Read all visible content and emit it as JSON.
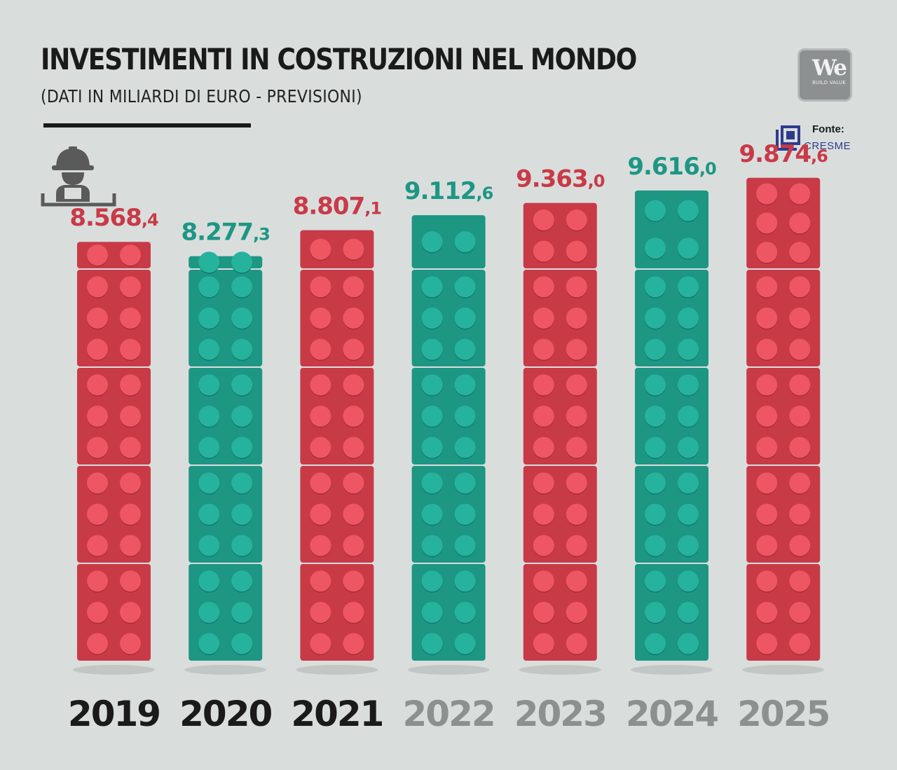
{
  "header": {
    "title": "INVESTIMENTI IN COSTRUZIONI NEL MONDO",
    "subtitle": "(DATI IN MILIARDI DI EURO - PREVISIONI)"
  },
  "logo": {
    "text": "We",
    "tagline": "BUILD VALUE"
  },
  "source": {
    "label": "Fonte:",
    "name": "CRESME"
  },
  "icons": {
    "worker": "construction-worker-icon",
    "cresme": "cresme-logo-icon"
  },
  "colors": {
    "background": "#d9dedd",
    "red_brick": "#c93a47",
    "red_stud": "#ef5663",
    "teal_brick": "#1e9684",
    "teal_stud": "#25b39e",
    "actual_year": "#1a1a1a",
    "forecast_year": "#8c9190"
  },
  "chart_data": {
    "type": "bar",
    "title": "INVESTIMENTI IN COSTRUZIONI NEL MONDO",
    "subtitle": "(DATI IN MILIARDI DI EURO - PREVISIONI)",
    "categories": [
      "2019",
      "2020",
      "2021",
      "2022",
      "2023",
      "2024",
      "2025"
    ],
    "values": [
      8568.4,
      8277.3,
      8807.1,
      9112.6,
      9363.0,
      9616.0,
      9874.6
    ],
    "value_labels": [
      {
        "main": "8.568",
        "dec": ",4"
      },
      {
        "main": "8.277",
        "dec": ",3"
      },
      {
        "main": "8.807",
        "dec": ",1"
      },
      {
        "main": "9.112",
        "dec": ",6"
      },
      {
        "main": "9.363",
        "dec": ",0"
      },
      {
        "main": "9.616",
        "dec": ",0"
      },
      {
        "main": "9.874",
        "dec": ",6"
      }
    ],
    "bar_colors": [
      "red",
      "teal",
      "red",
      "teal",
      "red",
      "teal",
      "red"
    ],
    "forecast": [
      false,
      false,
      false,
      true,
      true,
      true,
      true
    ],
    "xlabel": "",
    "ylabel": "",
    "unit": "miliardi di euro",
    "grid": false
  }
}
